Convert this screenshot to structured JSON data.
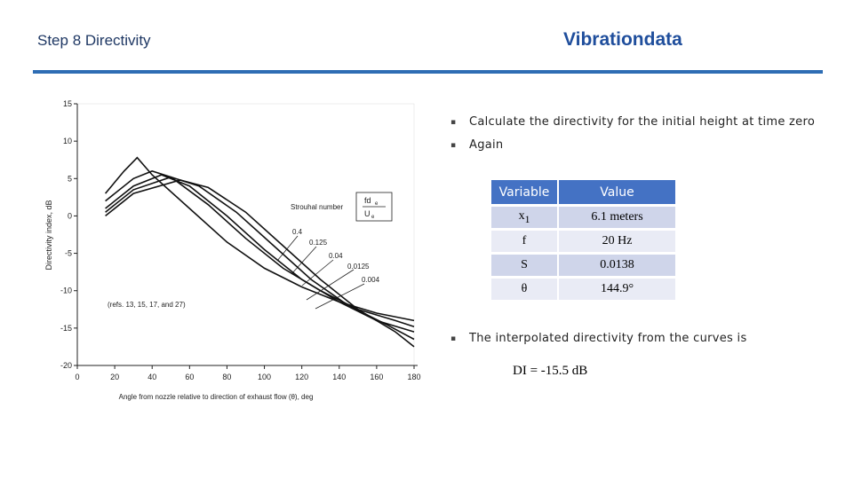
{
  "header": {
    "title": "Step 8   Directivity",
    "brand": "Vibrationdata"
  },
  "chart_data": {
    "type": "line",
    "xlabel": "Angle from nozzle relative to direction of exhaust flow (θ), deg",
    "ylabel": "Directivity index, dB",
    "note": "(refs. 13, 15, 17, and 27)",
    "strouhal": {
      "label": "Strouhal number",
      "numerator": "fd",
      "numerator_sub": "e",
      "denominator": "U",
      "denominator_sub": "e"
    },
    "xlim": [
      0,
      180
    ],
    "xticks": [
      0,
      20,
      40,
      60,
      80,
      100,
      120,
      140,
      160,
      180
    ],
    "ylim": [
      -20,
      15
    ],
    "yticks": [
      15,
      10,
      5,
      0,
      -5,
      -10,
      -15,
      -20
    ],
    "color": "#111111",
    "series": [
      {
        "name": "0.4",
        "x": [
          15,
          25,
          32,
          40,
          60,
          80,
          100,
          120,
          140,
          160,
          180
        ],
        "values": [
          3,
          6,
          7.8,
          5.5,
          1,
          -3.5,
          -7,
          -9.5,
          -11.5,
          -13,
          -14
        ]
      },
      {
        "name": "0.125",
        "x": [
          15,
          30,
          40,
          50,
          70,
          90,
          110,
          130,
          150,
          170,
          180
        ],
        "values": [
          2,
          5,
          6,
          5.2,
          1.5,
          -3,
          -7,
          -10,
          -12.5,
          -14,
          -14.8
        ]
      },
      {
        "name": "0.04",
        "x": [
          15,
          30,
          45,
          60,
          80,
          100,
          120,
          140,
          160,
          180
        ],
        "values": [
          1,
          4,
          5.5,
          4,
          0,
          -4.5,
          -8.5,
          -11.5,
          -14,
          -15.5
        ]
      },
      {
        "name": "0.0125",
        "x": [
          15,
          30,
          50,
          65,
          85,
          105,
          125,
          145,
          165,
          180
        ],
        "values": [
          0.5,
          3.5,
          5.2,
          4,
          0.5,
          -4,
          -8.5,
          -12,
          -14.5,
          -16.5
        ]
      },
      {
        "name": "0.004",
        "x": [
          15,
          30,
          55,
          70,
          90,
          110,
          130,
          150,
          170,
          180
        ],
        "values": [
          0,
          3,
          4.8,
          3.8,
          0.5,
          -4,
          -8.5,
          -12.5,
          -15.5,
          -17.5
        ]
      }
    ]
  },
  "bullets": [
    "Calculate the directivity for the initial height at time zero",
    "Again",
    "The interpolated directivity from the curves is"
  ],
  "table": {
    "header": [
      "Variable",
      "Value"
    ],
    "rows": [
      [
        {
          "main": "x",
          "sub": "1"
        },
        "6.1 meters"
      ],
      [
        "f",
        "20 Hz"
      ],
      [
        "S",
        "0.0138"
      ],
      [
        "θ",
        "144.9°"
      ]
    ]
  },
  "result": "DI = -15.5 dB"
}
